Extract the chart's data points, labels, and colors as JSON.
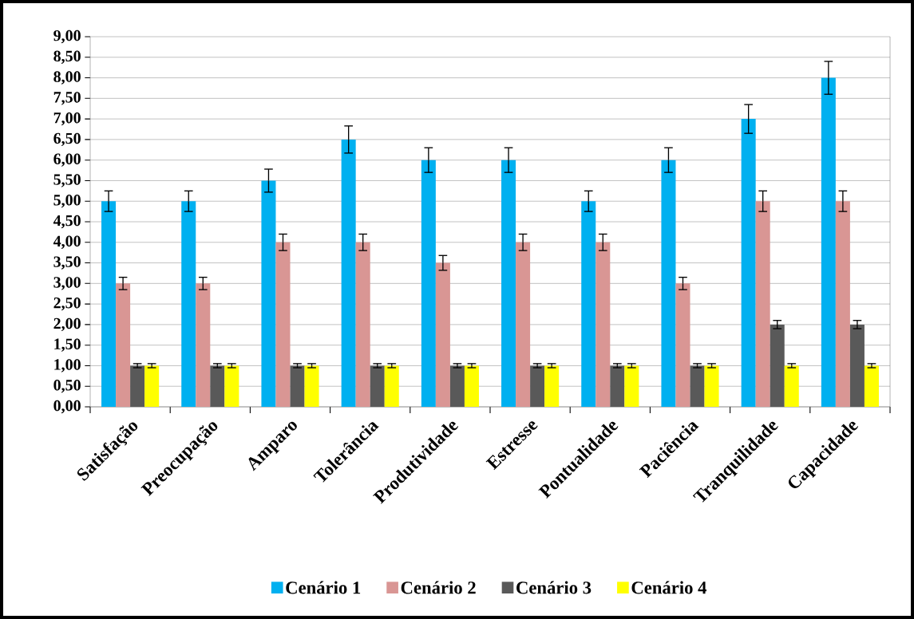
{
  "chart_data": {
    "type": "bar",
    "categories": [
      "Satisfação",
      "Preocupação",
      "Amparo",
      "Tolerância",
      "Produtividade",
      "Estresse",
      "Pontualidade",
      "Paciência",
      "Tranquilidade",
      "Capacidade"
    ],
    "series": [
      {
        "name": "Cenário 1",
        "color": "#00b0f0",
        "values": [
          5,
          5,
          5.5,
          6.5,
          6,
          6,
          5,
          6,
          7,
          8
        ],
        "errors": [
          0.25,
          0.25,
          0.28,
          0.33,
          0.3,
          0.3,
          0.25,
          0.3,
          0.35,
          0.4
        ]
      },
      {
        "name": "Cenário 2",
        "color": "#d99694",
        "values": [
          3,
          3,
          4,
          4,
          3.5,
          4,
          4,
          3,
          5,
          5
        ],
        "errors": [
          0.15,
          0.15,
          0.2,
          0.2,
          0.18,
          0.2,
          0.2,
          0.15,
          0.25,
          0.25
        ]
      },
      {
        "name": "Cenário 3",
        "color": "#595959",
        "values": [
          1,
          1,
          1,
          1,
          1,
          1,
          1,
          1,
          2,
          2
        ],
        "errors": [
          0.05,
          0.05,
          0.05,
          0.05,
          0.05,
          0.05,
          0.05,
          0.05,
          0.1,
          0.1
        ]
      },
      {
        "name": "Cenário 4",
        "color": "#ffff00",
        "values": [
          1,
          1,
          1,
          1,
          1,
          1,
          1,
          1,
          1,
          1
        ],
        "errors": [
          0.05,
          0.05,
          0.05,
          0.05,
          0.05,
          0.05,
          0.05,
          0.05,
          0.05,
          0.05
        ]
      }
    ],
    "ylim": [
      0,
      9
    ],
    "yticks": [
      {
        "value": 0,
        "label": "0,00"
      },
      {
        "value": 0.5,
        "label": "0,50"
      },
      {
        "value": 1,
        "label": "1,00"
      },
      {
        "value": 1.5,
        "label": "1,50"
      },
      {
        "value": 2,
        "label": "2,00"
      },
      {
        "value": 2.5,
        "label": "2,50"
      },
      {
        "value": 3,
        "label": "3,00"
      },
      {
        "value": 3.5,
        "label": "3,50"
      },
      {
        "value": 4,
        "label": "4,00"
      },
      {
        "value": 4.5,
        "label": "4,50"
      },
      {
        "value": 5,
        "label": "5,00"
      },
      {
        "value": 5.5,
        "label": "5,50"
      },
      {
        "value": 6,
        "label": "6,00"
      },
      {
        "value": 6.5,
        "label": "6,50"
      },
      {
        "value": 7,
        "label": "7,00"
      },
      {
        "value": 7.5,
        "label": "7,50"
      },
      {
        "value": 8,
        "label": "8,00"
      },
      {
        "value": 8.5,
        "label": "8,50"
      },
      {
        "value": 9,
        "label": "9,00"
      }
    ],
    "grid": "y",
    "legend": "bottom"
  }
}
